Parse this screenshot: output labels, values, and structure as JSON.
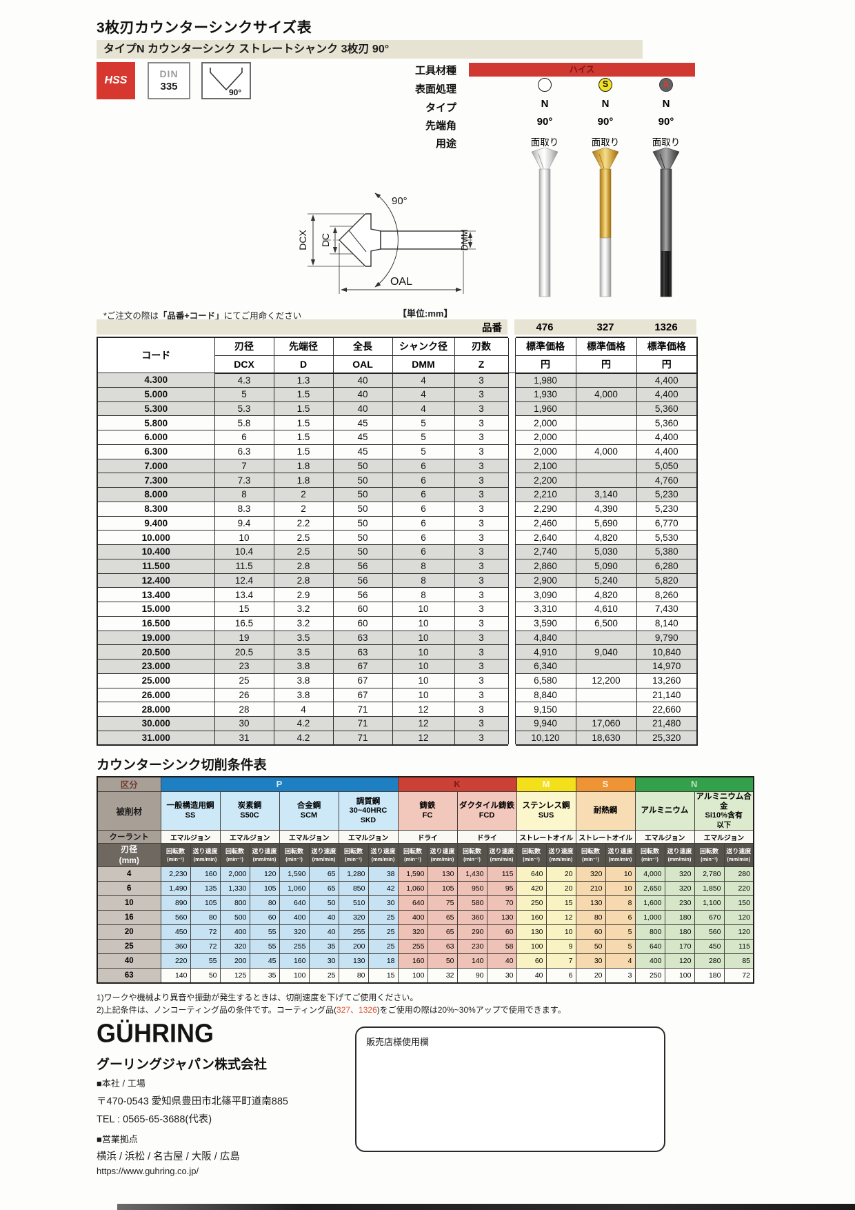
{
  "page": {
    "title": "3枚刃カウンターシンクサイズ表",
    "subtitle": "タイプN カウンターシンク ストレートシャンク 3枚刃 90°",
    "order_note_pre": "*ご注文の際は",
    "order_note_bold": "「品番+コード」",
    "order_note_post": "にてご用命ください",
    "unit_note": "【単位:mm】"
  },
  "badges": {
    "hss": "HSS",
    "din_line1": "DIN",
    "din_line2": "335",
    "angle_label": "90°"
  },
  "drawing": {
    "dcx": "DCX",
    "dc": "DC",
    "angle": "90°",
    "dmm": "DMM",
    "oal": "OAL"
  },
  "spec": {
    "labels": [
      "工具材種",
      "表面処理",
      "タイプ",
      "先端角",
      "用途"
    ],
    "material_band": "ハイス",
    "surface_letters": [
      "",
      "S",
      "A"
    ],
    "types": [
      "N",
      "N",
      "N"
    ],
    "angles": [
      "90°",
      "90°",
      "90°"
    ],
    "uses": [
      "面取り",
      "面取り",
      "面取り"
    ],
    "part_label": "品番",
    "part_numbers": [
      "476",
      "327",
      "1326"
    ]
  },
  "size_table": {
    "headers": {
      "code": "コード",
      "cols": [
        {
          "top": "刃径",
          "sub": "DCX"
        },
        {
          "top": "先端径",
          "sub": "D"
        },
        {
          "top": "全長",
          "sub": "OAL"
        },
        {
          "top": "シャンク径",
          "sub": "DMM"
        },
        {
          "top": "刃数",
          "sub": "Z"
        }
      ],
      "price_top": "標準価格",
      "price_sub": "円"
    },
    "rows": [
      [
        "4.300",
        "4.3",
        "1.3",
        "40",
        "4",
        "3",
        "1,980",
        "",
        "4,400"
      ],
      [
        "5.000",
        "5",
        "1.5",
        "40",
        "4",
        "3",
        "1,930",
        "4,000",
        "4,400"
      ],
      [
        "5.300",
        "5.3",
        "1.5",
        "40",
        "4",
        "3",
        "1,960",
        "",
        "5,360"
      ],
      [
        "5.800",
        "5.8",
        "1.5",
        "45",
        "5",
        "3",
        "2,000",
        "",
        "5,360"
      ],
      [
        "6.000",
        "6",
        "1.5",
        "45",
        "5",
        "3",
        "2,000",
        "",
        "4,400"
      ],
      [
        "6.300",
        "6.3",
        "1.5",
        "45",
        "5",
        "3",
        "2,000",
        "4,000",
        "4,400"
      ],
      [
        "7.000",
        "7",
        "1.8",
        "50",
        "6",
        "3",
        "2,100",
        "",
        "5,050"
      ],
      [
        "7.300",
        "7.3",
        "1.8",
        "50",
        "6",
        "3",
        "2,200",
        "",
        "4,760"
      ],
      [
        "8.000",
        "8",
        "2",
        "50",
        "6",
        "3",
        "2,210",
        "3,140",
        "5,230"
      ],
      [
        "8.300",
        "8.3",
        "2",
        "50",
        "6",
        "3",
        "2,290",
        "4,390",
        "5,230"
      ],
      [
        "9.400",
        "9.4",
        "2.2",
        "50",
        "6",
        "3",
        "2,460",
        "5,690",
        "6,770"
      ],
      [
        "10.000",
        "10",
        "2.5",
        "50",
        "6",
        "3",
        "2,640",
        "4,820",
        "5,530"
      ],
      [
        "10.400",
        "10.4",
        "2.5",
        "50",
        "6",
        "3",
        "2,740",
        "5,030",
        "5,380"
      ],
      [
        "11.500",
        "11.5",
        "2.8",
        "56",
        "8",
        "3",
        "2,860",
        "5,090",
        "6,280"
      ],
      [
        "12.400",
        "12.4",
        "2.8",
        "56",
        "8",
        "3",
        "2,900",
        "5,240",
        "5,820"
      ],
      [
        "13.400",
        "13.4",
        "2.9",
        "56",
        "8",
        "3",
        "3,090",
        "4,820",
        "8,260"
      ],
      [
        "15.000",
        "15",
        "3.2",
        "60",
        "10",
        "3",
        "3,310",
        "4,610",
        "7,430"
      ],
      [
        "16.500",
        "16.5",
        "3.2",
        "60",
        "10",
        "3",
        "3,590",
        "6,500",
        "8,140"
      ],
      [
        "19.000",
        "19",
        "3.5",
        "63",
        "10",
        "3",
        "4,840",
        "",
        "9,790"
      ],
      [
        "20.500",
        "20.5",
        "3.5",
        "63",
        "10",
        "3",
        "4,910",
        "9,040",
        "10,840"
      ],
      [
        "23.000",
        "23",
        "3.8",
        "67",
        "10",
        "3",
        "6,340",
        "",
        "14,970"
      ],
      [
        "25.000",
        "25",
        "3.8",
        "67",
        "10",
        "3",
        "6,580",
        "12,200",
        "13,260"
      ],
      [
        "26.000",
        "26",
        "3.8",
        "67",
        "10",
        "3",
        "8,840",
        "",
        "21,140"
      ],
      [
        "28.000",
        "28",
        "4",
        "71",
        "12",
        "3",
        "9,150",
        "",
        "22,660"
      ],
      [
        "30.000",
        "30",
        "4.2",
        "71",
        "12",
        "3",
        "9,940",
        "17,060",
        "21,480"
      ],
      [
        "31.000",
        "31",
        "4.2",
        "71",
        "12",
        "3",
        "10,120",
        "18,630",
        "25,320"
      ]
    ]
  },
  "cutting_table": {
    "title": "カウンターシンク切削条件表",
    "corner": {
      "kubun": "区分",
      "work": "被削材",
      "coolant": "クーラント",
      "dia_l1": "刃径",
      "dia_l2": "(mm)"
    },
    "groups": [
      {
        "key": "P",
        "label": "P",
        "span": 4
      },
      {
        "key": "K",
        "label": "K",
        "span": 2
      },
      {
        "key": "M",
        "label": "M",
        "span": 1
      },
      {
        "key": "S",
        "label": "S",
        "span": 1
      },
      {
        "key": "N",
        "label": "N",
        "span": 2
      }
    ],
    "materials": [
      {
        "g": "P",
        "l1": "一般構造用鋼",
        "l2": "SS",
        "l3": ""
      },
      {
        "g": "P",
        "l1": "炭素鋼",
        "l2": "S50C",
        "l3": ""
      },
      {
        "g": "P",
        "l1": "合金鋼",
        "l2": "SCM",
        "l3": ""
      },
      {
        "g": "P",
        "l1": "調質鋼",
        "l2": "30~40HRC",
        "l3": "SKD"
      },
      {
        "g": "K",
        "l1": "鋳鉄",
        "l2": "FC",
        "l3": ""
      },
      {
        "g": "K",
        "l1": "ダクタイル鋳鉄",
        "l2": "FCD",
        "l3": ""
      },
      {
        "g": "M",
        "l1": "ステンレス鋼",
        "l2": "SUS",
        "l3": ""
      },
      {
        "g": "S",
        "l1": "耐熱鋼",
        "l2": "",
        "l3": ""
      },
      {
        "g": "N",
        "l1": "アルミニウム",
        "l2": "",
        "l3": ""
      },
      {
        "g": "N",
        "l1": "アルミニウム合金",
        "l2": "Si10%含有",
        "l3": "以下"
      }
    ],
    "coolants": [
      "エマルジョン",
      "エマルジョン",
      "エマルジョン",
      "エマルジョン",
      "ドライ",
      "ドライ",
      "ストレートオイル",
      "ストレートオイル",
      "エマルジョン",
      "エマルジョン"
    ],
    "sub": {
      "rpm": "回転数",
      "rpm_unit": "(min⁻¹)",
      "feed": "送り速度",
      "feed_unit": "(mm/min)"
    },
    "rows": [
      [
        "4",
        "2,230",
        "160",
        "2,000",
        "120",
        "1,590",
        "65",
        "1,280",
        "38",
        "1,590",
        "130",
        "1,430",
        "115",
        "640",
        "20",
        "320",
        "10",
        "4,000",
        "320",
        "2,780",
        "280"
      ],
      [
        "6",
        "1,490",
        "135",
        "1,330",
        "105",
        "1,060",
        "65",
        "850",
        "42",
        "1,060",
        "105",
        "950",
        "95",
        "420",
        "20",
        "210",
        "10",
        "2,650",
        "320",
        "1,850",
        "220"
      ],
      [
        "10",
        "890",
        "105",
        "800",
        "80",
        "640",
        "50",
        "510",
        "30",
        "640",
        "75",
        "580",
        "70",
        "250",
        "15",
        "130",
        "8",
        "1,600",
        "230",
        "1,100",
        "150"
      ],
      [
        "16",
        "560",
        "80",
        "500",
        "60",
        "400",
        "40",
        "320",
        "25",
        "400",
        "65",
        "360",
        "130",
        "160",
        "12",
        "80",
        "6",
        "1,000",
        "180",
        "670",
        "120"
      ],
      [
        "20",
        "450",
        "72",
        "400",
        "55",
        "320",
        "40",
        "255",
        "25",
        "320",
        "65",
        "290",
        "60",
        "130",
        "10",
        "60",
        "5",
        "800",
        "180",
        "560",
        "120"
      ],
      [
        "25",
        "360",
        "72",
        "320",
        "55",
        "255",
        "35",
        "200",
        "25",
        "255",
        "63",
        "230",
        "58",
        "100",
        "9",
        "50",
        "5",
        "640",
        "170",
        "450",
        "115"
      ],
      [
        "40",
        "220",
        "55",
        "200",
        "45",
        "160",
        "30",
        "130",
        "18",
        "160",
        "50",
        "140",
        "40",
        "60",
        "7",
        "30",
        "4",
        "400",
        "120",
        "280",
        "85"
      ],
      [
        "63",
        "140",
        "50",
        "125",
        "35",
        "100",
        "25",
        "80",
        "15",
        "100",
        "32",
        "90",
        "30",
        "40",
        "6",
        "20",
        "3",
        "250",
        "100",
        "180",
        "72"
      ]
    ],
    "notes": {
      "n1": "1)ワークや機械より異音や振動が発生するときは、切削速度を下げてご使用ください。",
      "n2_pre": "2)上記条件は、ノンコーティング品の条件です。コーティング品(",
      "n2_hl": "327、1326",
      "n2_post": ")をご使用の際は20%~30%アップで使用できます。"
    }
  },
  "footer": {
    "logo": "GÜHRING",
    "company": "グーリングジャパン株式会社",
    "hq_label": "■本社 / 工場",
    "address": "〒470-0543 愛知県豊田市北篠平町道南885",
    "tel": "TEL : 0565-65-3688(代表)",
    "sales_label": "■営業拠点",
    "cities": "横浜 / 浜松 / 名古屋 / 大阪 / 広島",
    "url": "https://www.guhring.co.jp/",
    "dealer_box_label": "販売店様使用欄"
  },
  "colors": {
    "accent_red": "#d6382f",
    "beige": "#e7e3d2",
    "row_band_gray": "#dbdbd8",
    "p_blue": "#1e7fc2",
    "k_red": "#cb4136",
    "m_yellow": "#f3e01a",
    "s_orange": "#ee9435",
    "n_green": "#33a04c"
  }
}
